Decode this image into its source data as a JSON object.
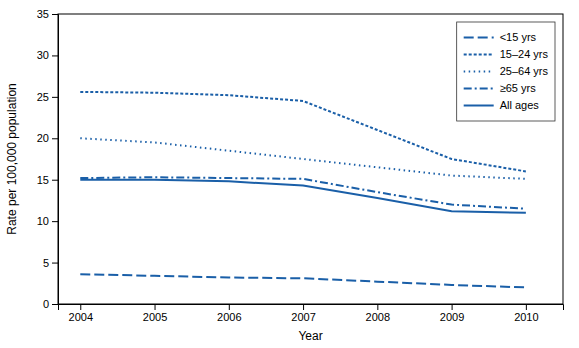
{
  "chart_data": {
    "type": "line",
    "xlabel": "Year",
    "ylabel": "Rate per 100,000 population",
    "x": [
      2004,
      2005,
      2006,
      2007,
      2008,
      2009,
      2010
    ],
    "series": [
      {
        "name": "<15 yrs",
        "color": "#1a5fa8",
        "line_style": "dashed",
        "values": [
          3.6,
          3.4,
          3.2,
          3.1,
          2.7,
          2.3,
          2.0
        ]
      },
      {
        "name": "15–24 yrs",
        "color": "#1a5fa8",
        "line_style": "dense-dotted",
        "values": [
          25.6,
          25.5,
          25.2,
          24.5,
          21.0,
          17.5,
          16.0
        ]
      },
      {
        "name": "25–64 yrs",
        "color": "#1a5fa8",
        "line_style": "dotted",
        "values": [
          20.0,
          19.5,
          18.5,
          17.5,
          16.5,
          15.5,
          15.1
        ]
      },
      {
        "name": "≥65 yrs",
        "color": "#1a5fa8",
        "line_style": "dashdot",
        "values": [
          15.2,
          15.3,
          15.2,
          15.1,
          13.5,
          12.0,
          11.5
        ]
      },
      {
        "name": "All ages",
        "color": "#1a5fa8",
        "line_style": "solid",
        "values": [
          15.0,
          15.0,
          14.8,
          14.3,
          12.8,
          11.2,
          11.0
        ]
      }
    ],
    "xlim": [
      2003.7,
      2010.5
    ],
    "xticks": [
      2004,
      2005,
      2006,
      2007,
      2008,
      2009,
      2010
    ],
    "ylim": [
      0,
      35
    ],
    "yticks": [
      0,
      5,
      10,
      15,
      20,
      25,
      30,
      35
    ],
    "grid": false,
    "legend": "upper right"
  }
}
